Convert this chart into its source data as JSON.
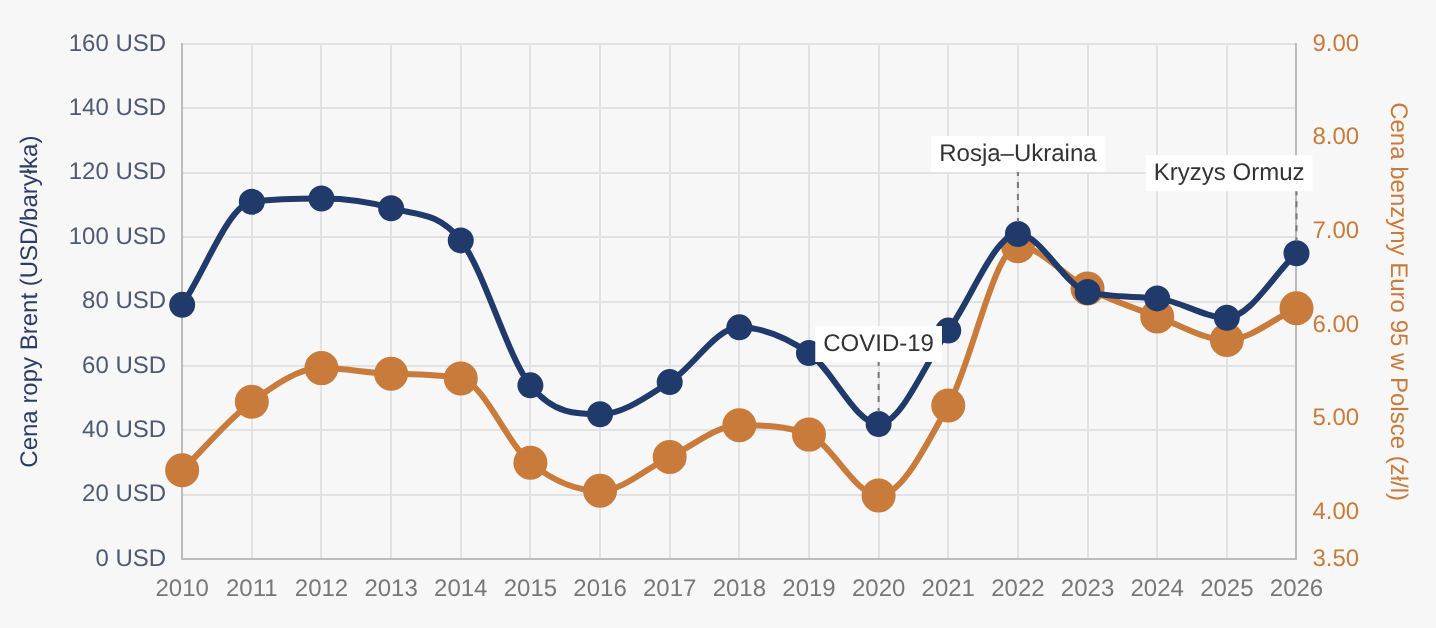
{
  "chart_data": {
    "type": "line",
    "categories": [
      "2010",
      "2011",
      "2012",
      "2013",
      "2014",
      "2015",
      "2016",
      "2017",
      "2018",
      "2019",
      "2020",
      "2021",
      "2022",
      "2023",
      "2024",
      "2025",
      "2026"
    ],
    "ylabel": "Cena ropy Brent (USD/baryłka)",
    "y2label": "Cena benzyny Euro 95 w Polsce (zł/l)",
    "ylim": [
      0,
      160
    ],
    "yticks": [
      {
        "value": 0,
        "label": "0 USD"
      },
      {
        "value": 20,
        "label": "20 USD"
      },
      {
        "value": 40,
        "label": "40 USD"
      },
      {
        "value": 60,
        "label": "60 USD"
      },
      {
        "value": 80,
        "label": "80 USD"
      },
      {
        "value": 100,
        "label": "100 USD"
      },
      {
        "value": 120,
        "label": "120 USD"
      },
      {
        "value": 140,
        "label": "140 USD"
      },
      {
        "value": 160,
        "label": "160 USD"
      }
    ],
    "y2lim": [
      3.5,
      9
    ],
    "y2ticks": [
      {
        "value": 3.5,
        "label": "3.50"
      },
      {
        "value": 4,
        "label": "4.00"
      },
      {
        "value": 5,
        "label": "5.00"
      },
      {
        "value": 6,
        "label": "6.00"
      },
      {
        "value": 7,
        "label": "7.00"
      },
      {
        "value": 8,
        "label": "8.00"
      },
      {
        "value": 9,
        "label": "9.00"
      }
    ],
    "series": [
      {
        "color": "#1f3a6b",
        "values": [
          79,
          111,
          112,
          109,
          99,
          54,
          45,
          55,
          72,
          64,
          42,
          71,
          101,
          83,
          81,
          75,
          95
        ]
      },
      {
        "color": "#c87b3a",
        "axis": "y2",
        "values": [
          4.45,
          5.18,
          5.54,
          5.48,
          5.43,
          4.53,
          4.23,
          4.59,
          4.93,
          4.83,
          4.18,
          5.14,
          6.84,
          6.39,
          6.09,
          5.84,
          6.18
        ]
      }
    ],
    "annotations": [
      {
        "text": "COVID-19",
        "x": "2020",
        "y": 42
      },
      {
        "text": "Rosja–Ukraina",
        "x": "2022",
        "y": 101
      },
      {
        "text": "Kryzys Ormuz",
        "x": "2026",
        "y": 95
      }
    ],
    "grid": true,
    "legend": false,
    "marker": "circle",
    "line_style": "solid"
  }
}
